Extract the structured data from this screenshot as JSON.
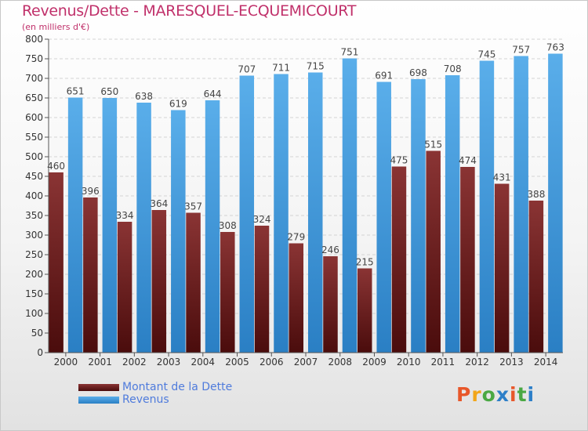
{
  "header": {
    "title": "Revenus/Dette - MARESQUEL-ECQUEMICOURT",
    "subtitle": "(en milliers d'€)"
  },
  "legend": [
    {
      "label": "Montant de la Dette",
      "color": "#7a2828"
    },
    {
      "label": "Revenus",
      "color": "#4f9fe0"
    }
  ],
  "logo": {
    "text": "Proxiti",
    "colors": [
      "#e8572a",
      "#f2a61a",
      "#4aa843",
      "#2d7fc8",
      "#e8572a",
      "#4aa843",
      "#2d7fc8"
    ]
  },
  "chart_data": {
    "type": "bar",
    "title": "Revenus/Dette - MARESQUEL-ECQUEMICOURT",
    "ylabel": "(en milliers d'€)",
    "categories": [
      "2000",
      "2001",
      "2002",
      "2003",
      "2004",
      "2005",
      "2006",
      "2007",
      "2008",
      "2009",
      "2010",
      "2011",
      "2012",
      "2013",
      "2014"
    ],
    "series": [
      {
        "name": "Montant de la Dette",
        "color": "#7a2828",
        "values": [
          460,
          396,
          334,
          364,
          357,
          308,
          324,
          279,
          246,
          215,
          475,
          515,
          474,
          431,
          388
        ]
      },
      {
        "name": "Revenus",
        "color": "#4f9fe0",
        "values": [
          651,
          650,
          638,
          619,
          644,
          707,
          711,
          715,
          751,
          691,
          698,
          708,
          745,
          757,
          763
        ]
      }
    ],
    "ylim": [
      0,
      800
    ],
    "ytick_step": 50,
    "grid": true,
    "legend_position": "bottom-left"
  }
}
